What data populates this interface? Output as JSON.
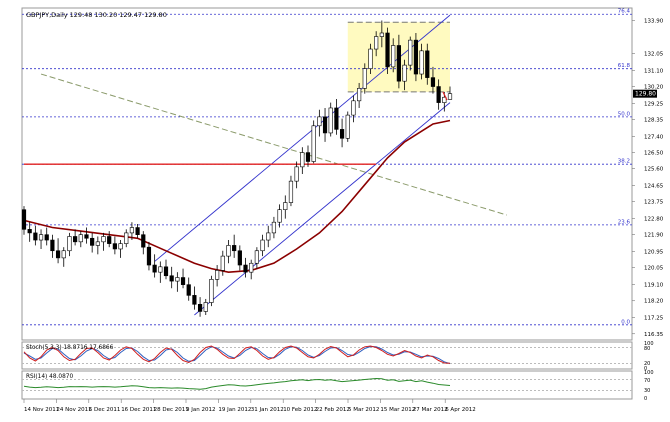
{
  "header": {
    "symbol_line": "GBPJPY,Daily  129.48 130.20 129.47 129.80"
  },
  "price_axis": {
    "ticks": [
      "133.90",
      "132.05",
      "131.10",
      "130.20",
      "129.25",
      "128.35",
      "127.40",
      "126.50",
      "125.60",
      "124.65",
      "123.75",
      "122.80",
      "121.90",
      "120.95",
      "120.05",
      "119.10",
      "118.20",
      "117.25",
      "116.35"
    ],
    "current_price": "129.80"
  },
  "fib_labels": [
    {
      "label": "76.4",
      "price": 134.25
    },
    {
      "label": "61.8",
      "price": 131.2
    },
    {
      "label": "50.0",
      "price": 128.5
    },
    {
      "label": "38.2",
      "price": 125.85
    },
    {
      "label": "23.6",
      "price": 122.45
    },
    {
      "label": "0.0",
      "price": 116.85
    }
  ],
  "time_axis": {
    "labels": [
      "14 Nov 2011",
      "24 Nov 2011",
      "6 Dec 2011",
      "16 Dec 2011",
      "28 Dec 2011",
      "9 Jan 2012",
      "19 Jan 2012",
      "31 Jan 2012",
      "10 Feb 2012",
      "22 Feb 2012",
      "5 Mar 2012",
      "15 Mar 2012",
      "27 Mar 2012",
      "6 Apr 2012"
    ]
  },
  "stoch": {
    "label": "Stoch(5,3,3) 18.8716 17.6866",
    "ticks": [
      "100",
      "80",
      "20",
      "0"
    ]
  },
  "rsi": {
    "label": "RSI(14) 48.0870",
    "ticks": [
      "100",
      "70",
      "30",
      "0"
    ]
  },
  "colors": {
    "bull_candle": "#ffffff",
    "bear_candle": "#000000",
    "moving_average": "#8b0000",
    "channel": "#3333cc",
    "support_line": "#e02020",
    "fib_line": "#3333cc",
    "trend_dashed": "#8a9a6a",
    "highlight_box": "#fffac0",
    "stoch_main": "#d02020",
    "stoch_signal": "#3060c0",
    "rsi_line": "#2a8a2a"
  },
  "chart_data": {
    "type": "candlestick",
    "symbol": "GBPJPY",
    "timeframe": "Daily",
    "ylim": [
      116.0,
      134.6
    ],
    "candles": [
      [
        123.3,
        123.5,
        121.9,
        122.2
      ],
      [
        122.2,
        122.6,
        121.5,
        122.0
      ],
      [
        122.0,
        122.4,
        121.3,
        121.6
      ],
      [
        121.6,
        122.2,
        121.1,
        121.9
      ],
      [
        121.9,
        122.3,
        121.3,
        121.6
      ],
      [
        121.6,
        121.9,
        120.6,
        121.0
      ],
      [
        121.0,
        121.7,
        120.3,
        120.6
      ],
      [
        120.6,
        121.2,
        120.1,
        121.0
      ],
      [
        121.0,
        122.0,
        120.7,
        121.8
      ],
      [
        121.8,
        122.2,
        121.3,
        121.5
      ],
      [
        121.5,
        122.1,
        121.2,
        121.9
      ],
      [
        121.9,
        122.3,
        121.4,
        121.7
      ],
      [
        121.7,
        122.0,
        120.9,
        121.3
      ],
      [
        121.3,
        121.8,
        120.8,
        121.5
      ],
      [
        121.5,
        122.0,
        121.0,
        121.8
      ],
      [
        121.8,
        122.1,
        121.2,
        121.4
      ],
      [
        121.4,
        121.8,
        120.8,
        121.1
      ],
      [
        121.1,
        121.6,
        120.6,
        121.4
      ],
      [
        121.4,
        122.2,
        121.2,
        122.0
      ],
      [
        122.0,
        122.6,
        121.6,
        122.3
      ],
      [
        122.3,
        122.5,
        121.7,
        121.9
      ],
      [
        121.9,
        122.1,
        120.8,
        121.2
      ],
      [
        121.2,
        121.5,
        119.9,
        120.2
      ],
      [
        120.2,
        120.8,
        119.5,
        119.8
      ],
      [
        119.8,
        120.4,
        119.2,
        120.1
      ],
      [
        120.1,
        120.5,
        119.4,
        119.6
      ],
      [
        119.6,
        120.1,
        118.9,
        119.3
      ],
      [
        119.3,
        119.8,
        118.7,
        119.5
      ],
      [
        119.5,
        120.0,
        118.9,
        119.1
      ],
      [
        119.1,
        119.5,
        118.2,
        118.5
      ],
      [
        118.5,
        119.0,
        117.7,
        118.0
      ],
      [
        118.0,
        118.4,
        117.3,
        117.6
      ],
      [
        117.6,
        118.3,
        117.4,
        118.1
      ],
      [
        118.1,
        119.6,
        117.9,
        119.4
      ],
      [
        119.4,
        120.2,
        119.0,
        119.9
      ],
      [
        119.9,
        121.0,
        119.6,
        120.7
      ],
      [
        120.7,
        121.6,
        120.3,
        121.3
      ],
      [
        121.3,
        121.9,
        120.6,
        121.0
      ],
      [
        121.0,
        121.3,
        119.9,
        120.2
      ],
      [
        120.2,
        120.6,
        119.5,
        119.8
      ],
      [
        119.8,
        120.5,
        119.4,
        120.3
      ],
      [
        120.3,
        121.2,
        120.0,
        121.0
      ],
      [
        121.0,
        121.9,
        120.7,
        121.6
      ],
      [
        121.6,
        122.4,
        121.2,
        122.0
      ],
      [
        122.0,
        122.9,
        121.7,
        122.6
      ],
      [
        122.6,
        123.6,
        122.3,
        123.3
      ],
      [
        123.3,
        124.1,
        122.8,
        123.7
      ],
      [
        123.7,
        125.2,
        123.5,
        124.9
      ],
      [
        124.9,
        126.0,
        124.5,
        125.7
      ],
      [
        125.7,
        126.8,
        125.3,
        126.5
      ],
      [
        126.5,
        126.9,
        125.7,
        126.0
      ],
      [
        126.0,
        128.3,
        125.9,
        128.0
      ],
      [
        128.0,
        128.9,
        127.4,
        128.5
      ],
      [
        128.5,
        129.0,
        127.1,
        127.6
      ],
      [
        127.6,
        129.3,
        127.4,
        129.0
      ],
      [
        129.0,
        129.5,
        127.5,
        127.8
      ],
      [
        127.8,
        128.4,
        126.8,
        127.3
      ],
      [
        127.3,
        128.8,
        127.1,
        128.6
      ],
      [
        128.6,
        129.7,
        128.2,
        129.4
      ],
      [
        129.4,
        130.4,
        129.0,
        130.1
      ],
      [
        130.1,
        131.5,
        129.8,
        131.2
      ],
      [
        131.2,
        132.6,
        130.9,
        132.3
      ],
      [
        132.3,
        133.3,
        131.9,
        133.0
      ],
      [
        133.0,
        133.9,
        132.4,
        133.2
      ],
      [
        133.2,
        133.5,
        130.9,
        131.3
      ],
      [
        131.3,
        132.9,
        131.0,
        132.5
      ],
      [
        132.5,
        133.1,
        130.1,
        130.5
      ],
      [
        130.5,
        131.7,
        130.0,
        131.4
      ],
      [
        131.4,
        133.0,
        131.1,
        132.8
      ],
      [
        132.8,
        133.2,
        130.5,
        130.9
      ],
      [
        130.9,
        132.6,
        130.6,
        132.2
      ],
      [
        132.2,
        132.6,
        130.3,
        130.7
      ],
      [
        130.7,
        131.3,
        129.8,
        130.2
      ],
      [
        130.2,
        130.6,
        128.9,
        129.3
      ],
      [
        129.3,
        129.9,
        128.8,
        129.6
      ],
      [
        129.48,
        130.2,
        129.47,
        129.8
      ]
    ],
    "moving_average": [
      [
        0,
        122.7
      ],
      [
        5,
        122.3
      ],
      [
        10,
        122.1
      ],
      [
        15,
        121.9
      ],
      [
        20,
        121.7
      ],
      [
        25,
        121.0
      ],
      [
        30,
        120.3
      ],
      [
        33,
        120.0
      ],
      [
        36,
        119.8
      ],
      [
        40,
        119.9
      ],
      [
        44,
        120.3
      ],
      [
        48,
        121.1
      ],
      [
        52,
        122.0
      ],
      [
        56,
        123.2
      ],
      [
        60,
        124.7
      ],
      [
        64,
        126.2
      ],
      [
        67,
        127.1
      ],
      [
        70,
        127.7
      ],
      [
        72,
        128.1
      ],
      [
        75,
        128.3
      ]
    ],
    "price_channel": {
      "upper": [
        [
          23,
          120.4
        ],
        [
          75,
          134.2
        ]
      ],
      "lower": [
        [
          30,
          117.4
        ],
        [
          75,
          129.3
        ]
      ]
    },
    "support_line": {
      "price": 125.85,
      "from": 0,
      "to": 62
    },
    "trend_line": {
      "from": [
        3,
        130.9
      ],
      "to": [
        85,
        123.0
      ]
    },
    "highlight_box": {
      "from": 57,
      "to": 75,
      "low": 129.9,
      "high": 133.8
    },
    "fib_levels": [
      134.25,
      131.2,
      128.5,
      125.85,
      122.45,
      116.85
    ],
    "stochastic": {
      "main": [
        65,
        40,
        28,
        45,
        72,
        82,
        70,
        45,
        30,
        35,
        58,
        78,
        80,
        62,
        40,
        32,
        50,
        72,
        85,
        78,
        55,
        35,
        25,
        38,
        62,
        80,
        75,
        50,
        30,
        22,
        35,
        62,
        82,
        88,
        75,
        55,
        40,
        38,
        58,
        80,
        85,
        70,
        48,
        35,
        42,
        65,
        82,
        88,
        80,
        62,
        45,
        40,
        55,
        75,
        86,
        80,
        62,
        45,
        52,
        72,
        85,
        88,
        82,
        70,
        55,
        48,
        58,
        70,
        62,
        48,
        40,
        52,
        45,
        30,
        20,
        18.87
      ],
      "signal": [
        60,
        48,
        35,
        40,
        60,
        78,
        76,
        56,
        38,
        33,
        48,
        68,
        78,
        70,
        50,
        36,
        42,
        62,
        78,
        80,
        66,
        45,
        30,
        32,
        50,
        72,
        77,
        62,
        40,
        27,
        30,
        50,
        72,
        85,
        80,
        64,
        48,
        40,
        50,
        70,
        82,
        77,
        58,
        42,
        40,
        55,
        75,
        85,
        83,
        70,
        52,
        43,
        50,
        66,
        80,
        82,
        70,
        54,
        50,
        63,
        78,
        86,
        85,
        76,
        62,
        52,
        55,
        65,
        64,
        55,
        45,
        48,
        47,
        38,
        25,
        17.69
      ]
    },
    "rsi": {
      "values": [
        45,
        42,
        40,
        41,
        43,
        42,
        40,
        41,
        44,
        43,
        44,
        43,
        42,
        43,
        44,
        43,
        42,
        43,
        45,
        47,
        46,
        43,
        40,
        39,
        40,
        39,
        38,
        39,
        38,
        36,
        35,
        34,
        36,
        42,
        45,
        48,
        51,
        50,
        47,
        46,
        48,
        51,
        54,
        56,
        58,
        61,
        63,
        66,
        68,
        70,
        67,
        70,
        71,
        68,
        70,
        66,
        63,
        65,
        67,
        69,
        71,
        73,
        75,
        74,
        68,
        70,
        64,
        66,
        69,
        63,
        66,
        61,
        57,
        52,
        50,
        48.09
      ],
      "ylim": [
        0,
        100
      ]
    }
  }
}
